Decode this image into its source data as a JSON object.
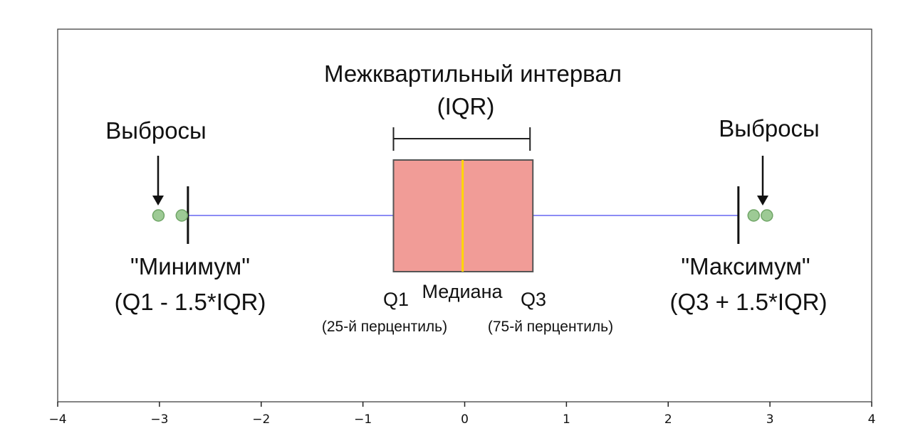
{
  "chart_data": {
    "type": "box",
    "xlim": [
      -4,
      4
    ],
    "x_ticks": [
      {
        "value": -4,
        "label": "−4"
      },
      {
        "value": -3,
        "label": "−3"
      },
      {
        "value": -2,
        "label": "−2"
      },
      {
        "value": -1,
        "label": "−1"
      },
      {
        "value": 0,
        "label": "0"
      },
      {
        "value": 1,
        "label": "1"
      },
      {
        "value": 2,
        "label": "2"
      },
      {
        "value": 3,
        "label": "3"
      },
      {
        "value": 4,
        "label": "4"
      }
    ],
    "box": {
      "q1": -0.7,
      "median": -0.02,
      "q3": 0.67,
      "whisker_low": -2.72,
      "whisker_high": 2.69,
      "outliers": [
        -3.01,
        -2.78,
        2.84,
        2.97
      ]
    },
    "annotations": {
      "iqr_title": "Межквартильный интервал",
      "iqr_abbr": "(IQR)",
      "outliers_left": "Выбросы",
      "outliers_right": "Выбросы",
      "minimum_label": "\"Минимум\"",
      "minimum_formula": "(Q1 - 1.5*IQR)",
      "maximum_label": "\"Максимум\"",
      "maximum_formula": "(Q3 + 1.5*IQR)",
      "q1_label": "Q1",
      "median_label": "Медиана",
      "q3_label": "Q3",
      "q1_percentile": "(25-й перцентиль)",
      "q3_percentile": "(75-й перцентиль)"
    },
    "grid": false,
    "colors": {
      "box_fill": "#f19c97",
      "box_edge": "#555555",
      "median": "#ffd700",
      "whisker": "#8c8cf5",
      "cap": "#111111",
      "outlier_fill": "#9dca95",
      "outlier_edge": "#6fa566"
    }
  }
}
